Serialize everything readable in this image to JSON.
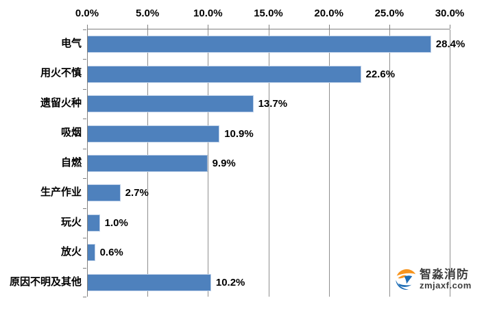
{
  "chart_data": {
    "type": "bar",
    "orientation": "horizontal",
    "title": "",
    "categories": [
      "电气",
      "用火不慎",
      "遗留火种",
      "吸烟",
      "自燃",
      "生产作业",
      "玩火",
      "放火",
      "原因不明及其他"
    ],
    "values": [
      28.4,
      22.6,
      13.7,
      10.9,
      9.9,
      2.7,
      1.0,
      0.6,
      10.2
    ],
    "value_labels": [
      "28.4%",
      "22.6%",
      "13.7%",
      "10.9%",
      "9.9%",
      "2.7%",
      "1.0%",
      "0.6%",
      "10.2%"
    ],
    "x_ticks": [
      "0.0%",
      "5.0%",
      "10.0%",
      "15.0%",
      "20.0%",
      "25.0%",
      "30.0%"
    ],
    "x_tick_values": [
      0,
      5,
      10,
      15,
      20,
      25,
      30
    ],
    "xlim": [
      0,
      30
    ],
    "x_axis_position": "top",
    "grid": true,
    "legend": false,
    "bar_color": "#4e81bd",
    "bar_border_color": "#bccfe8",
    "gridline_color": "#8e8e8e",
    "axis_color": "#7f7f7f",
    "label_color": "#000000"
  },
  "watermark": {
    "name": "智淼消防",
    "domain": "zmjaxf.com",
    "logo_orange": "#f7941d",
    "logo_blue": "#1c6cb5"
  }
}
